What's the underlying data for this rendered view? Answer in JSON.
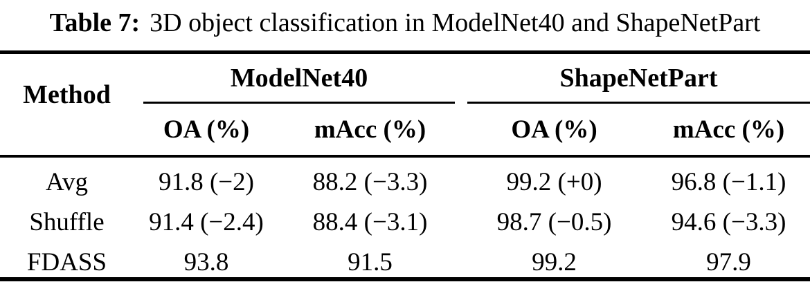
{
  "caption": {
    "label": "Table 7:",
    "text": "3D object classification in ModelNet40 and ShapeNetPart"
  },
  "table": {
    "method_header": "Method",
    "groups": [
      {
        "label": "ModelNet40"
      },
      {
        "label": "ShapeNetPart"
      }
    ],
    "subheaders": [
      "OA (%)",
      "mAcc (%)",
      "OA (%)",
      "mAcc (%)"
    ],
    "rows": [
      {
        "method": "Avg",
        "values": [
          "91.8 (−2)",
          "88.2 (−3.3)",
          "99.2 (+0)",
          "96.8 (−1.1)"
        ]
      },
      {
        "method": "Shuffle",
        "values": [
          "91.4 (−2.4)",
          "88.4 (−3.1)",
          "98.7 (−0.5)",
          "94.6 (−3.3)"
        ]
      },
      {
        "method": "FDASS",
        "values": [
          "93.8",
          "91.5",
          "99.2",
          "97.9"
        ]
      }
    ]
  },
  "colors": {
    "text": "#000000",
    "background": "#ffffff",
    "rule": "#000000"
  }
}
